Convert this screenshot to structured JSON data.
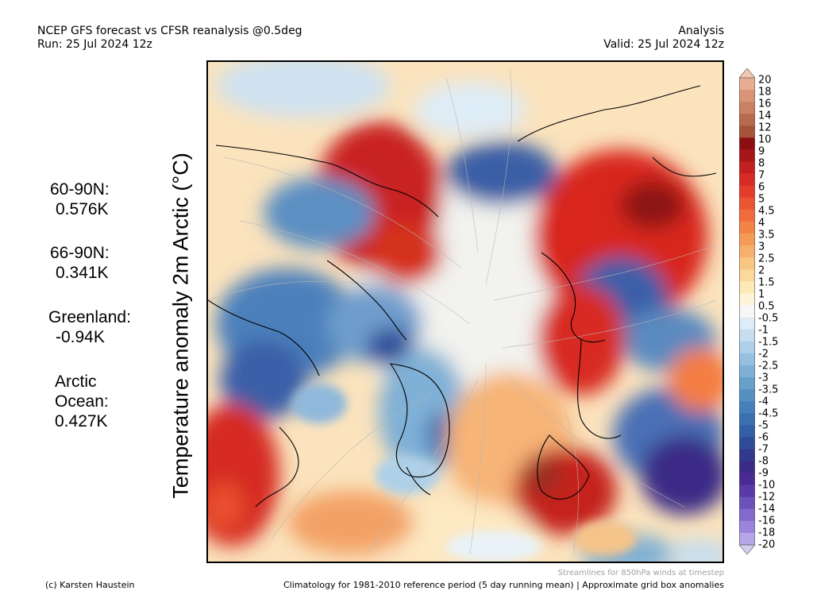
{
  "header": {
    "line1": "NCEP GFS forecast vs CFSR reanalysis @0.5deg",
    "line2": "Run: 25 Jul 2024 12z",
    "right1": "Analysis",
    "right2": "Valid: 25 Jul 2024 12z"
  },
  "vertical_title": "Temperature anomaly 2m Arctic (°C)",
  "stats": {
    "n60_label": "60-90N:",
    "n60_value": "0.576K",
    "n66_label": "66-90N:",
    "n66_value": "0.341K",
    "greenland_label": "Greenland:",
    "greenland_value": "-0.94K",
    "arctic_label1": "Arctic",
    "arctic_label2": "Ocean:",
    "arctic_value": "0.427K"
  },
  "colorbar": {
    "ticks": [
      "20",
      "18",
      "16",
      "14",
      "12",
      "10",
      "9",
      "8",
      "7",
      "6",
      "5",
      "4.5",
      "4",
      "3.5",
      "3",
      "2.5",
      "2",
      "1.5",
      "1",
      "0.5",
      "-0.5",
      "-1",
      "-1.5",
      "-2",
      "-2.5",
      "-3",
      "-3.5",
      "-4",
      "-4.5",
      "-5",
      "-6",
      "-7",
      "-8",
      "-9",
      "-10",
      "-12",
      "-14",
      "-16",
      "-18",
      "-20"
    ],
    "colors": [
      "#f2c8b3",
      "#e6ad93",
      "#d99478",
      "#c98063",
      "#b66a4e",
      "#a5533a",
      "#8b0f12",
      "#a81519",
      "#c11f20",
      "#d92b26",
      "#e43d2c",
      "#ec5533",
      "#f06c3b",
      "#f38448",
      "#f59a57",
      "#f7b06c",
      "#f9c583",
      "#fbd89b",
      "#fde9b8",
      "#fdf5d9",
      "#f7f7f7",
      "#deecf7",
      "#c6def0",
      "#aed0e8",
      "#96c0df",
      "#7fb0d6",
      "#68a0cc",
      "#5690c3",
      "#4680ba",
      "#3a6fb0",
      "#335fa6",
      "#2f4c98",
      "#31398a",
      "#3b2b86",
      "#4a2a95",
      "#5a3aa8",
      "#6d51bb",
      "#8369cc",
      "#9b85db",
      "#b7a6e8",
      "#d6cdf3"
    ]
  },
  "map_icons": {
    "streamlines": "streamline-icon",
    "coastline": "coastline-icon"
  },
  "footer": {
    "streamlines_note": "Streamlines for 850hPa winds at timestep",
    "credit": "(c) Karsten Haustein",
    "climatology": "Climatology for 1981-2010 reference period (5 day running mean) | Approximate grid box anomalies"
  }
}
